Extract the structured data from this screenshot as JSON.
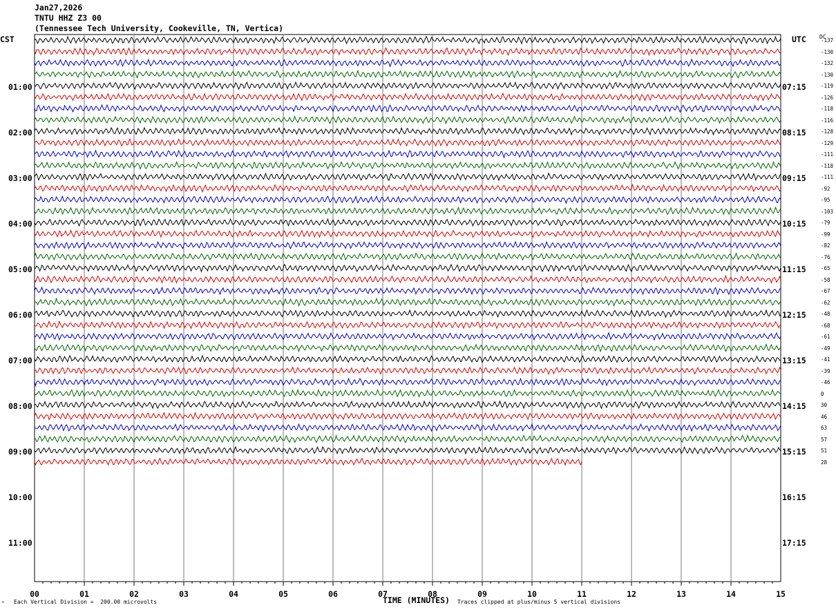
{
  "header": {
    "date": "Jan27,2026",
    "station": "TNTU HHZ Z3 00",
    "location": "(Tennessee Tech University, Cookeville, TN, Vertica)"
  },
  "left_tz": "CST",
  "right_tz": "UTC",
  "dc_label": "DC",
  "footer": {
    "scale_note": "Each Vertical Division =  200.00 microvolts",
    "xlabel": "TIME (MINUTES)",
    "clip_note": "Traces clipped at plus/minus 5 vertical divisions",
    "corner_mark": "⌃"
  },
  "chart_data": {
    "type": "line",
    "title": "TNTU HHZ Z3 00",
    "xlabel": "TIME (MINUTES)",
    "xlim": [
      0,
      15
    ],
    "x_ticks": [
      "00",
      "01",
      "02",
      "03",
      "04",
      "05",
      "06",
      "07",
      "08",
      "09",
      "10",
      "11",
      "12",
      "13",
      "14",
      "15"
    ],
    "left_hours": [
      "01:00",
      "02:00",
      "03:00",
      "04:00",
      "05:00",
      "06:00",
      "07:00",
      "08:00",
      "09:00",
      "10:00",
      "11:00"
    ],
    "right_hours": [
      "07:15",
      "08:15",
      "09:15",
      "10:15",
      "11:15",
      "12:15",
      "13:15",
      "14:15",
      "15:15",
      "16:15",
      "17:15"
    ],
    "trace_colors": [
      "#000000",
      "#dd0000",
      "#0000cc",
      "#006600"
    ],
    "trace_count": 38,
    "last_trace_end_minute": 11,
    "dc_offsets": [
      "-137",
      "-130",
      "-132",
      "-130",
      "-119",
      "-126",
      "-118",
      "-116",
      "-128",
      "-129",
      "-111",
      "-118",
      "-111",
      "-92",
      "-95",
      "-103",
      "-79",
      "-99",
      "-82",
      "-76",
      "-65",
      "-58",
      "-67",
      "-62",
      "-48",
      "-68",
      "-61",
      "-49",
      "-41",
      "-39",
      "-46",
      "0",
      "30",
      "46",
      "63",
      "57",
      "51",
      "28"
    ]
  }
}
